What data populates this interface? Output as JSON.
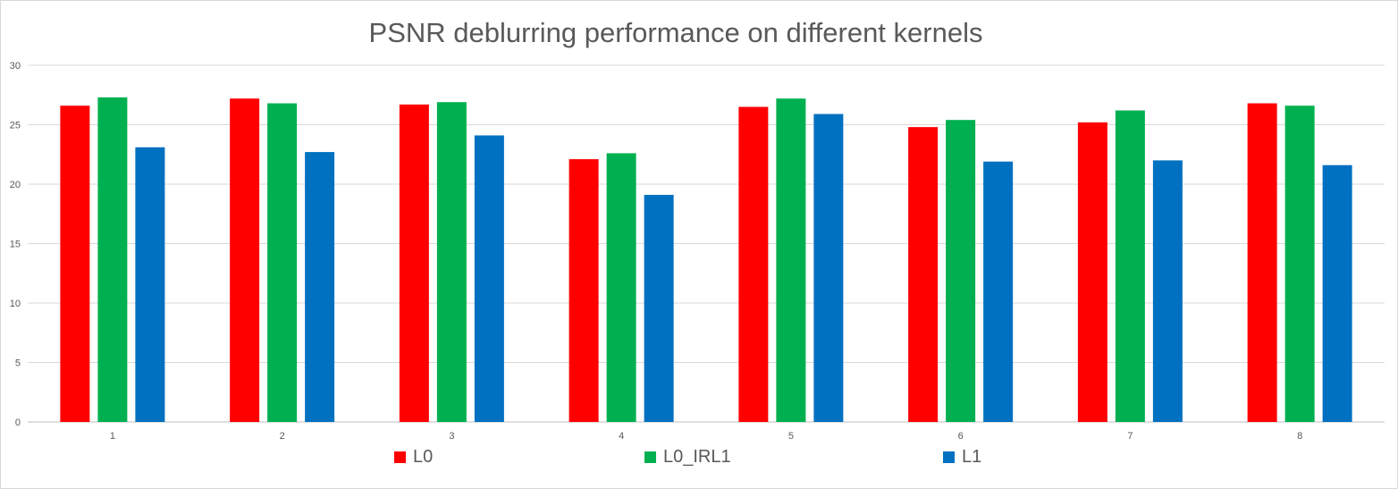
{
  "chart_data": {
    "type": "bar",
    "title": "PSNR deblurring performance on different kernels",
    "xlabel": "",
    "ylabel": "",
    "categories": [
      "1",
      "2",
      "3",
      "4",
      "5",
      "6",
      "7",
      "8"
    ],
    "series": [
      {
        "name": "L0",
        "color": "#ff0000",
        "values": [
          26.6,
          27.2,
          26.7,
          22.1,
          26.5,
          24.8,
          25.2,
          26.8
        ]
      },
      {
        "name": "L0_IRL1",
        "color": "#00b050",
        "values": [
          27.3,
          26.8,
          26.9,
          22.6,
          27.2,
          25.4,
          26.2,
          26.6
        ]
      },
      {
        "name": "L1",
        "color": "#0070c0",
        "values": [
          23.1,
          22.7,
          24.1,
          19.1,
          25.9,
          21.9,
          22.0,
          21.6
        ]
      }
    ],
    "ylim": [
      0,
      30
    ],
    "yticks": [
      0,
      5,
      10,
      15,
      20,
      25,
      30
    ],
    "grid": true,
    "legend_position": "bottom"
  }
}
